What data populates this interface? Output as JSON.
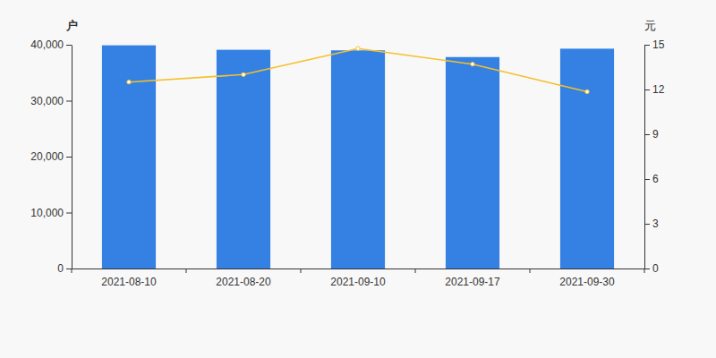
{
  "chart_data": {
    "type": "bar",
    "ylabel": "户",
    "y2label": "元",
    "categories": [
      "2021-08-10",
      "2021-08-20",
      "2021-09-10",
      "2021-09-17",
      "2021-09-30"
    ],
    "series": [
      {
        "type": "bar",
        "color": "#3481e3",
        "values": [
          39900,
          39100,
          39000,
          37800,
          39300
        ]
      },
      {
        "type": "line",
        "axis": "y2",
        "color": "#f5c02a",
        "marker": "circle",
        "values": [
          12.5,
          13.0,
          14.75,
          13.7,
          11.85
        ]
      }
    ],
    "ylim": [
      0,
      40000
    ],
    "yticks": [
      0,
      {
        "value": 10000,
        "label": "10,000"
      },
      {
        "value": 20000,
        "label": "20,000"
      },
      {
        "value": 30000,
        "label": "30,000"
      },
      {
        "value": 40000,
        "label": "40,000"
      }
    ],
    "y2lim": [
      0,
      15
    ],
    "y2ticks": [
      0,
      3,
      6,
      9,
      12,
      15
    ],
    "grid": false
  }
}
